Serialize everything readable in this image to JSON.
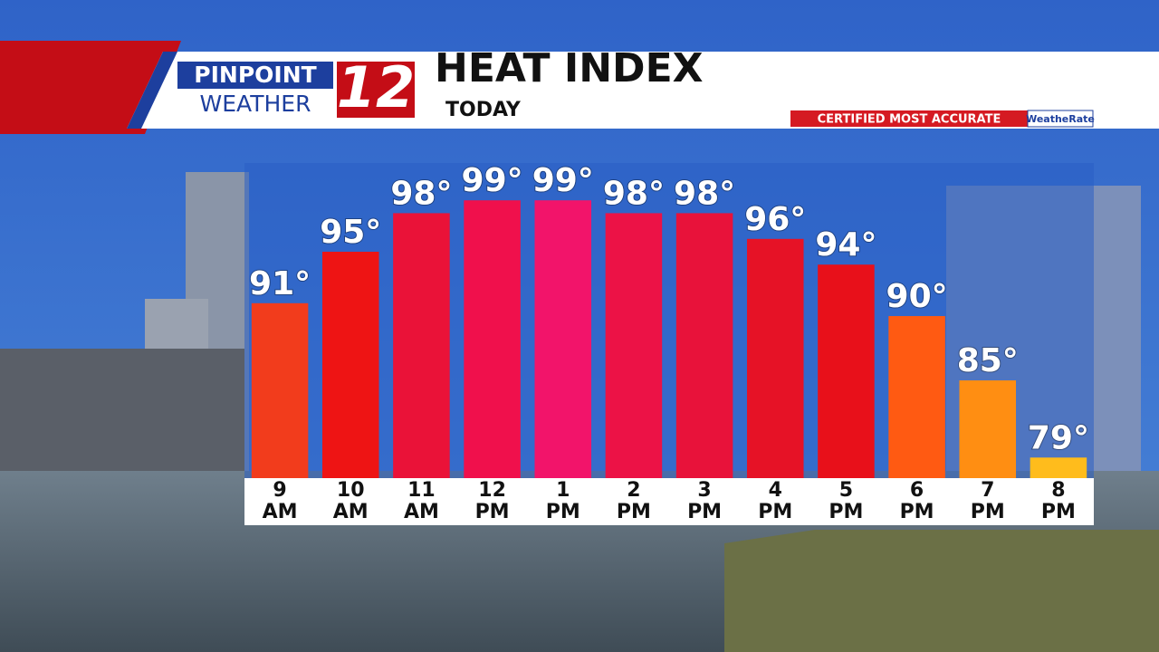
{
  "branding": {
    "brand_top": "PINPOINT",
    "brand_bottom": "WEATHER",
    "channel": "12",
    "badge": "CERTIFIED MOST ACCURATE",
    "badge_partner": "WeatheRate"
  },
  "chart_data": {
    "type": "bar",
    "title": "HEAT INDEX",
    "subtitle": "TODAY",
    "categories": [
      "9\nAM",
      "10\nAM",
      "11\nAM",
      "12\nPM",
      "1\nPM",
      "2\nPM",
      "3\nPM",
      "4\nPM",
      "5\nPM",
      "6\nPM",
      "7\nPM",
      "8\nPM"
    ],
    "values": [
      91,
      95,
      98,
      99,
      99,
      98,
      98,
      96,
      94,
      90,
      85,
      79
    ],
    "value_labels": [
      "91°",
      "95°",
      "98°",
      "99°",
      "99°",
      "98°",
      "98°",
      "96°",
      "94°",
      "90°",
      "85°",
      "79°"
    ],
    "colors": [
      "#f23c1c",
      "#ee1414",
      "#ea1238",
      "#f0104c",
      "#f2146a",
      "#ec1246",
      "#e8123a",
      "#e61226",
      "#e8101a",
      "#ff5a12",
      "#ff8e12",
      "#ffbc1c"
    ],
    "ylim": [
      77.4,
      100
    ]
  }
}
